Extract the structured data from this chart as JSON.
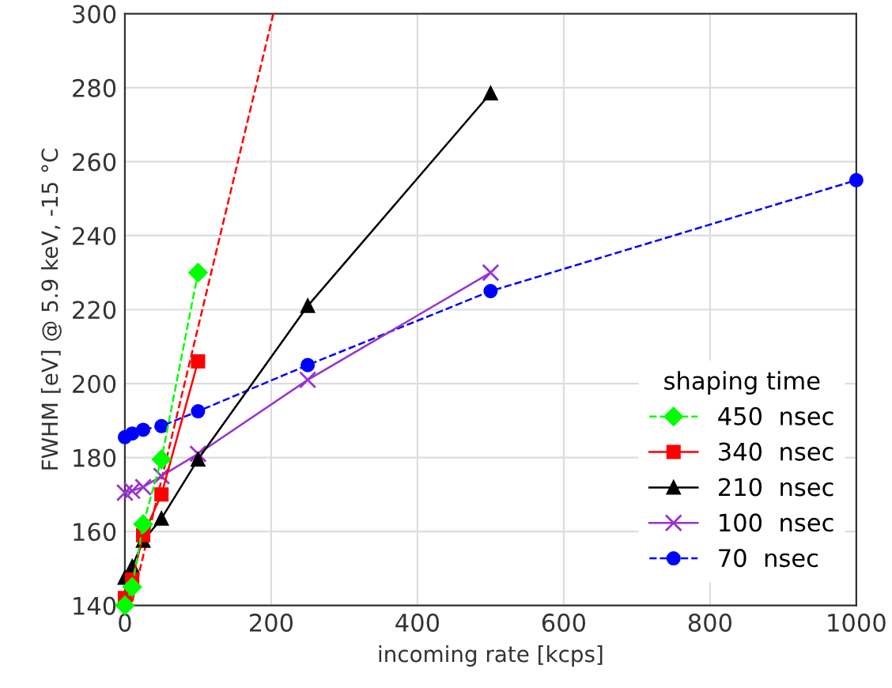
{
  "chart_data": {
    "type": "line",
    "xlabel": "incoming rate [kcps]",
    "ylabel": "FWHM [eV] @ 5.9 keV, -15 °C",
    "legend_title": "shaping time",
    "legend": "bottom right",
    "grid": true,
    "xlim": [
      0,
      1000
    ],
    "xticks": [
      0,
      200,
      400,
      600,
      800,
      1000
    ],
    "ylim": [
      140,
      300
    ],
    "yticks": [
      140,
      160,
      180,
      200,
      220,
      240,
      260,
      280,
      300
    ],
    "series": [
      {
        "name": "450  nsec",
        "color": "#00ff00",
        "marker": "diamond",
        "line_style": "dashed",
        "x": [
          0,
          10,
          25,
          50,
          100
        ],
        "values": [
          140,
          145,
          162,
          179.5,
          230
        ]
      },
      {
        "name": "340  nsec",
        "color": "#ff0000",
        "marker": "square",
        "line_style": "solid",
        "x": [
          0,
          10,
          25,
          50,
          100
        ],
        "values": [
          142,
          147,
          159,
          170,
          206
        ]
      },
      {
        "name": "210  nsec",
        "color": "#000000",
        "marker": "triangle",
        "line_style": "solid",
        "x": [
          0,
          10,
          25,
          50,
          100,
          250,
          500
        ],
        "values": [
          147.5,
          150.5,
          157.5,
          163.5,
          179.5,
          221,
          278.5
        ]
      },
      {
        "name": "100  nsec",
        "color": "#9933cc",
        "marker": "cross",
        "line_style": "solid",
        "x": [
          0,
          10,
          25,
          50,
          100,
          250,
          500
        ],
        "values": [
          170.5,
          171,
          172,
          175,
          181,
          201,
          230
        ]
      },
      {
        "name": "70  nsec",
        "color": "#0000ff",
        "marker": "circle",
        "line_style": "dashed",
        "x": [
          0,
          10,
          25,
          50,
          100,
          250,
          500,
          1000
        ],
        "values": [
          185.5,
          186.5,
          187.5,
          188.5,
          192.5,
          205,
          225,
          255
        ]
      },
      {
        "color": "#ff0000",
        "marker": "none",
        "line_style": "dashed",
        "x": [
          10,
          203
        ],
        "values": [
          141,
          300
        ]
      }
    ]
  }
}
